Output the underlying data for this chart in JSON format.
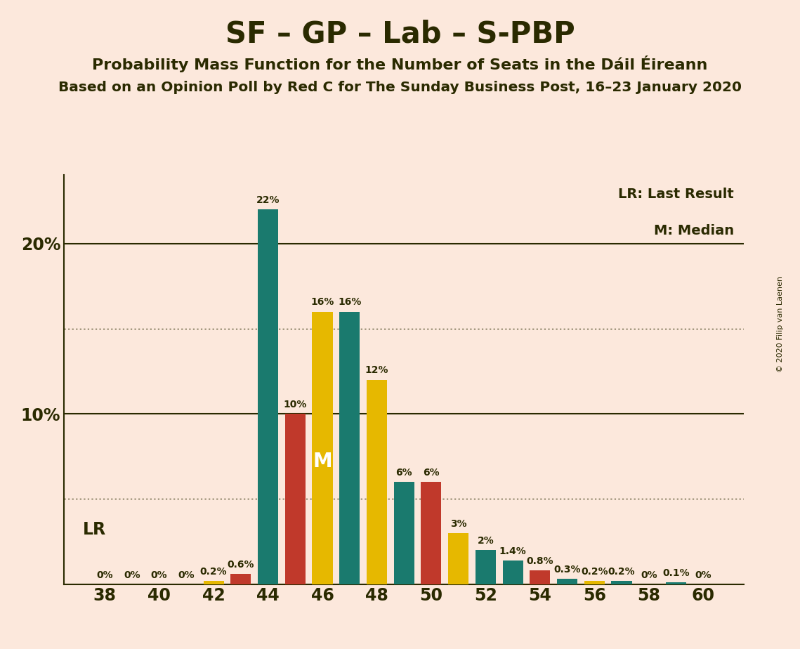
{
  "title": "SF – GP – Lab – S-PBP",
  "subtitle1": "Probability Mass Function for the Number of Seats in the Dáil Éireann",
  "subtitle2": "Based on an Opinion Poll by Red C for The Sunday Business Post, 16–23 January 2020",
  "copyright": "© 2020 Filip van Laenen",
  "legend_lr": "LR: Last Result",
  "legend_m": "M: Median",
  "background_color": "#fce8dc",
  "seats": [
    38,
    39,
    40,
    41,
    42,
    43,
    44,
    45,
    46,
    47,
    48,
    49,
    50,
    51,
    52,
    53,
    54,
    55,
    56,
    57,
    58,
    59,
    60
  ],
  "values": [
    0.0,
    0.0,
    0.0,
    0.0,
    0.2,
    0.6,
    22.0,
    10.0,
    16.0,
    16.0,
    12.0,
    6.0,
    6.0,
    3.0,
    2.0,
    1.4,
    0.8,
    0.3,
    0.2,
    0.2,
    0.0,
    0.1,
    0.0
  ],
  "bar_colors": [
    "#1a7a6e",
    "#1a7a6e",
    "#1a7a6e",
    "#1a7a6e",
    "#e6b800",
    "#c0392b",
    "#1a7a6e",
    "#c0392b",
    "#e6b800",
    "#1a7a6e",
    "#e6b800",
    "#1a7a6e",
    "#c0392b",
    "#e6b800",
    "#1a7a6e",
    "#1a7a6e",
    "#c0392b",
    "#1a7a6e",
    "#e6b800",
    "#1a7a6e",
    "#1a7a6e",
    "#1a7a6e",
    "#1a7a6e"
  ],
  "label_values": [
    "0%",
    "0%",
    "0%",
    "0%",
    "0.2%",
    "0.6%",
    "22%",
    "10%",
    "16%",
    "16%",
    "12%",
    "6%",
    "6%",
    "3%",
    "2%",
    "1.4%",
    "0.8%",
    "0.3%",
    "0.2%",
    "0.2%",
    "0%",
    "0.1%",
    "0%"
  ],
  "lr_seat": 42,
  "median_seat": 46,
  "xtick_seats": [
    38,
    40,
    42,
    44,
    46,
    48,
    50,
    52,
    54,
    56,
    58,
    60
  ],
  "ylim": [
    0,
    24
  ],
  "color_teal": "#1a7a6e",
  "color_red": "#c0392b",
  "color_gold": "#e6b800",
  "axis_color": "#2a2a00",
  "grid_color": "#2a2a00",
  "text_color": "#2a2a00"
}
